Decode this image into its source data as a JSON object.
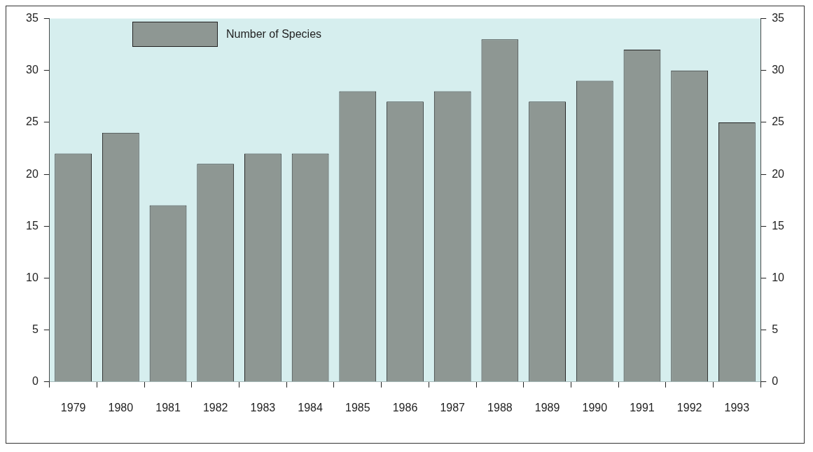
{
  "chart_data": {
    "type": "bar",
    "categories": [
      "1979",
      "1980",
      "1981",
      "1982",
      "1983",
      "1984",
      "1985",
      "1986",
      "1987",
      "1988",
      "1989",
      "1990",
      "1991",
      "1992",
      "1993"
    ],
    "series": [
      {
        "name": "Number of Species",
        "color": "#8e9793",
        "values": [
          22,
          24,
          17,
          21,
          22,
          22,
          28,
          27,
          28,
          33,
          27,
          29,
          32,
          30,
          25
        ]
      }
    ],
    "ylim": [
      0,
      35
    ],
    "yticks": [
      0,
      5,
      10,
      15,
      20,
      25,
      30,
      35
    ],
    "y2lim": [
      0,
      35
    ],
    "y2ticks": [
      0,
      5,
      10,
      15,
      20,
      25,
      30,
      35
    ],
    "legend": "top left"
  }
}
